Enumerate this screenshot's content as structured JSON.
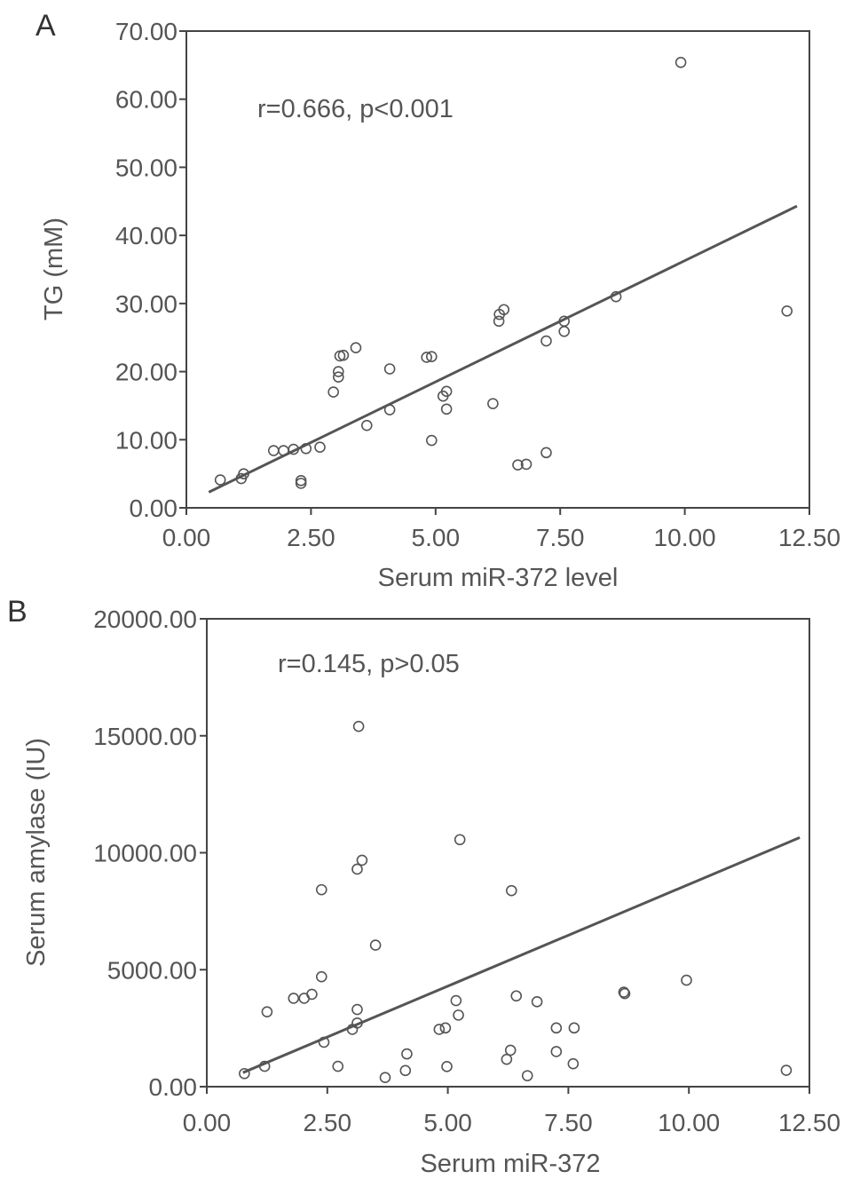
{
  "chart_data": [
    {
      "type": "scatter",
      "panel_label": "A",
      "xlabel": "Serum miR-372 level",
      "ylabel": "TG (mM)",
      "annotation": "r=0.666, p<0.001",
      "xlim": [
        0,
        12.5
      ],
      "ylim": [
        0,
        70
      ],
      "xticks": [
        "0.00",
        "2.50",
        "5.00",
        "7.50",
        "10.00",
        "12.50"
      ],
      "yticks": [
        "0.00",
        "10.00",
        "20.00",
        "30.00",
        "40.00",
        "50.00",
        "60.00",
        "70.00"
      ],
      "fit_line": {
        "x": [
          0.45,
          12.25
        ],
        "y": [
          2.3,
          44.3
        ]
      },
      "points": [
        {
          "x": 0.68,
          "y": 4.1
        },
        {
          "x": 1.1,
          "y": 4.3
        },
        {
          "x": 1.15,
          "y": 5.0
        },
        {
          "x": 1.75,
          "y": 8.4
        },
        {
          "x": 1.95,
          "y": 8.4
        },
        {
          "x": 2.15,
          "y": 8.6
        },
        {
          "x": 2.3,
          "y": 4.0
        },
        {
          "x": 2.3,
          "y": 3.6
        },
        {
          "x": 2.4,
          "y": 8.7
        },
        {
          "x": 2.68,
          "y": 8.9
        },
        {
          "x": 2.95,
          "y": 17.0
        },
        {
          "x": 3.05,
          "y": 19.2
        },
        {
          "x": 3.05,
          "y": 20.0
        },
        {
          "x": 3.08,
          "y": 22.3
        },
        {
          "x": 3.15,
          "y": 22.4
        },
        {
          "x": 3.4,
          "y": 23.5
        },
        {
          "x": 3.62,
          "y": 12.1
        },
        {
          "x": 4.08,
          "y": 14.4
        },
        {
          "x": 4.08,
          "y": 20.4
        },
        {
          "x": 4.82,
          "y": 22.1
        },
        {
          "x": 4.92,
          "y": 22.2
        },
        {
          "x": 4.92,
          "y": 9.9
        },
        {
          "x": 5.15,
          "y": 16.4
        },
        {
          "x": 5.22,
          "y": 17.1
        },
        {
          "x": 5.22,
          "y": 14.5
        },
        {
          "x": 6.15,
          "y": 15.3
        },
        {
          "x": 6.27,
          "y": 27.4
        },
        {
          "x": 6.28,
          "y": 28.4
        },
        {
          "x": 6.37,
          "y": 29.1
        },
        {
          "x": 6.65,
          "y": 6.3
        },
        {
          "x": 6.82,
          "y": 6.4
        },
        {
          "x": 7.22,
          "y": 8.1
        },
        {
          "x": 7.22,
          "y": 24.5
        },
        {
          "x": 7.58,
          "y": 25.9
        },
        {
          "x": 7.58,
          "y": 27.4
        },
        {
          "x": 8.62,
          "y": 31.0
        },
        {
          "x": 9.92,
          "y": 65.4
        },
        {
          "x": 12.05,
          "y": 28.9
        }
      ]
    },
    {
      "type": "scatter",
      "panel_label": "B",
      "xlabel": "Serum miR-372",
      "ylabel": "Serum amylase (IU)",
      "annotation": "r=0.145, p>0.05",
      "xlim": [
        0,
        12.5
      ],
      "ylim": [
        0,
        20000
      ],
      "xticks": [
        "0.00",
        "2.50",
        "5.00",
        "7.50",
        "10.00",
        "12.50"
      ],
      "yticks": [
        "0.00",
        "5000.00",
        "10000.00",
        "15000.00",
        "20000.00"
      ],
      "fit_line": {
        "x": [
          0.75,
          12.3
        ],
        "y": [
          600,
          10650
        ]
      },
      "points": [
        {
          "x": 0.78,
          "y": 560
        },
        {
          "x": 1.2,
          "y": 870
        },
        {
          "x": 1.25,
          "y": 3200
        },
        {
          "x": 1.8,
          "y": 3780
        },
        {
          "x": 2.02,
          "y": 3780
        },
        {
          "x": 2.18,
          "y": 3950
        },
        {
          "x": 2.38,
          "y": 8420
        },
        {
          "x": 2.38,
          "y": 4700
        },
        {
          "x": 2.43,
          "y": 1900
        },
        {
          "x": 2.72,
          "y": 870
        },
        {
          "x": 3.02,
          "y": 2450
        },
        {
          "x": 3.12,
          "y": 2720
        },
        {
          "x": 3.12,
          "y": 3300
        },
        {
          "x": 3.12,
          "y": 9300
        },
        {
          "x": 3.15,
          "y": 15400
        },
        {
          "x": 3.22,
          "y": 9680
        },
        {
          "x": 3.5,
          "y": 6050
        },
        {
          "x": 3.7,
          "y": 390
        },
        {
          "x": 4.12,
          "y": 690
        },
        {
          "x": 4.15,
          "y": 1400
        },
        {
          "x": 4.82,
          "y": 2450
        },
        {
          "x": 4.95,
          "y": 2510
        },
        {
          "x": 4.98,
          "y": 860
        },
        {
          "x": 5.17,
          "y": 3680
        },
        {
          "x": 5.22,
          "y": 3060
        },
        {
          "x": 5.25,
          "y": 10560
        },
        {
          "x": 6.22,
          "y": 1170
        },
        {
          "x": 6.3,
          "y": 1560
        },
        {
          "x": 6.32,
          "y": 8380
        },
        {
          "x": 6.42,
          "y": 3880
        },
        {
          "x": 6.65,
          "y": 470
        },
        {
          "x": 6.85,
          "y": 3630
        },
        {
          "x": 7.25,
          "y": 2510
        },
        {
          "x": 7.25,
          "y": 1500
        },
        {
          "x": 7.6,
          "y": 980
        },
        {
          "x": 7.62,
          "y": 2510
        },
        {
          "x": 8.65,
          "y": 4040
        },
        {
          "x": 8.67,
          "y": 3980
        },
        {
          "x": 9.95,
          "y": 4550
        },
        {
          "x": 12.02,
          "y": 700
        }
      ]
    }
  ]
}
